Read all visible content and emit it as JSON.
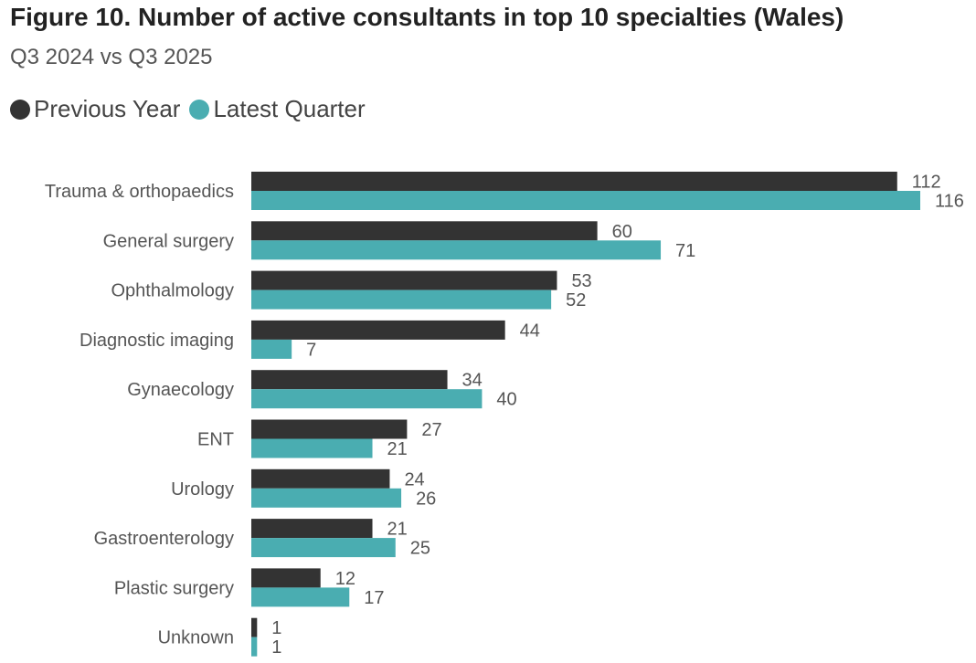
{
  "title": "Figure 10. Number of active consultants in top 10 specialties (Wales)",
  "subtitle": "Q3 2024 vs Q3 2025",
  "legend": [
    {
      "label": "Previous Year",
      "color": "#333333"
    },
    {
      "label": "Latest Quarter",
      "color": "#4AADB1"
    }
  ],
  "chart_data": {
    "type": "bar",
    "orientation": "horizontal",
    "title": "Figure 10. Number of active consultants in top 10 specialties (Wales)",
    "subtitle": "Q3 2024 vs Q3 2025",
    "categories": [
      "Trauma & orthopaedics",
      "General surgery",
      "Ophthalmology",
      "Diagnostic imaging",
      "Gynaecology",
      "ENT",
      "Urology",
      "Gastroenterology",
      "Plastic surgery",
      "Unknown"
    ],
    "series": [
      {
        "name": "Previous Year",
        "color": "#333333",
        "values": [
          112,
          60,
          53,
          44,
          34,
          27,
          24,
          21,
          12,
          1
        ]
      },
      {
        "name": "Latest Quarter",
        "color": "#4AADB1",
        "values": [
          116,
          71,
          52,
          7,
          40,
          21,
          26,
          25,
          17,
          1
        ]
      }
    ],
    "xlim": [
      0,
      116
    ],
    "grid": false,
    "legend_position": "top-left"
  }
}
